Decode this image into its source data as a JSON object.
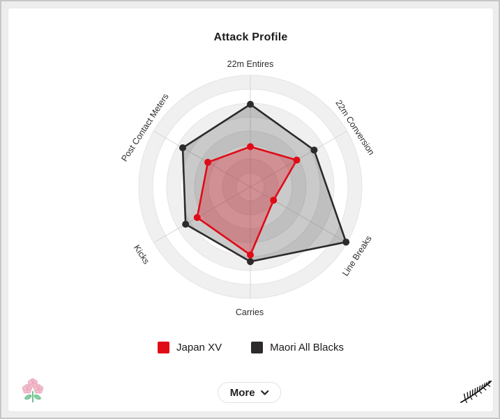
{
  "header": {
    "title": "Attack Profile"
  },
  "chart_data": {
    "type": "radar",
    "categories": [
      "22m Entires",
      "22m Conversion",
      "Line Breaks",
      "Carries",
      "Kicks",
      "Post Contact Meters"
    ],
    "series": [
      {
        "name": "Japan XV",
        "color": "#e00b17",
        "fill_opacity": 0.3,
        "values": [
          36,
          48,
          24,
          61,
          55,
          44
        ]
      },
      {
        "name": "Maori All Blacks",
        "color": "#2d2a2b",
        "fill_opacity": 0.25,
        "values": [
          74,
          66,
          99,
          67,
          67,
          70
        ]
      }
    ],
    "scale": [
      0,
      100
    ],
    "ring_count": 8,
    "grid_shape": "circular",
    "grid_band_color": "#f0f0f1",
    "grid_line_color": "#e4e4e6",
    "spoke_color": "#d6d6d8",
    "legend_position": "bottom"
  },
  "legend": {
    "items": [
      {
        "label": "Japan XV",
        "color": "#e00b17"
      },
      {
        "label": "Maori All Blacks",
        "color": "#2d2a2b"
      }
    ]
  },
  "footer": {
    "more_label": "More"
  },
  "icons": {
    "more_chevron": "chevron-down",
    "left_logo": "japan-cherry-blossom",
    "right_logo": "maori-silver-fern"
  }
}
